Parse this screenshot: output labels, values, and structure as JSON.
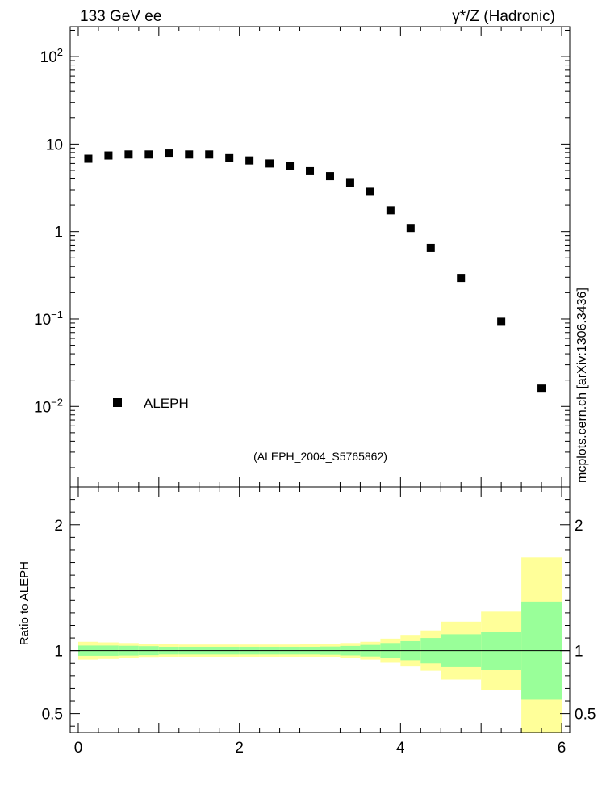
{
  "header": {
    "left_label": "133 GeV ee",
    "right_label": "γ*/Z (Hadronic)"
  },
  "side_label": "mcplots.cern.ch [arXiv:1306.3436]",
  "analysis_label": "(ALEPH_2004_S5765862)",
  "colors": {
    "marker": "#000000",
    "band_inner": "#99ff99",
    "band_outer": "#ffff99",
    "analysis_label": "#8c8c8c"
  },
  "chart_data": [
    {
      "type": "scatter",
      "yscale": "log",
      "xlim": [
        -0.1,
        6.1
      ],
      "ylim": [
        0.0012,
        220
      ],
      "ytick_labels": [
        {
          "value": 0.01,
          "base": "10",
          "exp": "−2"
        },
        {
          "value": 0.1,
          "base": "10",
          "exp": "−1"
        },
        {
          "value": 1,
          "text": "1"
        },
        {
          "value": 10,
          "text": "10"
        },
        {
          "value": 100,
          "base": "10",
          "exp": "2"
        }
      ],
      "legend": {
        "position": "lower-left",
        "entries": [
          "ALEPH"
        ]
      },
      "series": [
        {
          "name": "ALEPH",
          "x": [
            0.125,
            0.375,
            0.625,
            0.875,
            1.125,
            1.375,
            1.625,
            1.875,
            2.125,
            2.375,
            2.625,
            2.875,
            3.125,
            3.375,
            3.625,
            3.875,
            4.125,
            4.375,
            4.75,
            5.25,
            5.75
          ],
          "y": [
            6.8,
            7.4,
            7.6,
            7.6,
            7.8,
            7.6,
            7.6,
            6.9,
            6.5,
            6.0,
            5.6,
            4.9,
            4.3,
            3.6,
            2.85,
            1.75,
            1.1,
            0.65,
            0.295,
            0.093,
            0.016
          ]
        }
      ]
    },
    {
      "type": "area",
      "ylabel": "Ratio to ALEPH",
      "xlim": [
        -0.1,
        6.1
      ],
      "ylim": [
        0.35,
        2.3
      ],
      "xticks": [
        0,
        2,
        4,
        6
      ],
      "yticks": [
        0.5,
        1,
        2
      ],
      "reference_line": 1,
      "bins": [
        {
          "lo": 0.0,
          "hi": 0.25,
          "inner": [
            0.96,
            1.04
          ],
          "outer": [
            0.93,
            1.07
          ]
        },
        {
          "lo": 0.25,
          "hi": 0.5,
          "inner": [
            0.96,
            1.04
          ],
          "outer": [
            0.935,
            1.065
          ]
        },
        {
          "lo": 0.5,
          "hi": 0.75,
          "inner": [
            0.962,
            1.038
          ],
          "outer": [
            0.94,
            1.06
          ]
        },
        {
          "lo": 0.75,
          "hi": 1.0,
          "inner": [
            0.965,
            1.035
          ],
          "outer": [
            0.945,
            1.055
          ]
        },
        {
          "lo": 1.0,
          "hi": 1.25,
          "inner": [
            0.97,
            1.03
          ],
          "outer": [
            0.95,
            1.05
          ]
        },
        {
          "lo": 1.25,
          "hi": 1.5,
          "inner": [
            0.97,
            1.03
          ],
          "outer": [
            0.952,
            1.048
          ]
        },
        {
          "lo": 1.5,
          "hi": 1.75,
          "inner": [
            0.97,
            1.03
          ],
          "outer": [
            0.952,
            1.048
          ]
        },
        {
          "lo": 1.75,
          "hi": 2.0,
          "inner": [
            0.97,
            1.03
          ],
          "outer": [
            0.952,
            1.048
          ]
        },
        {
          "lo": 2.0,
          "hi": 2.25,
          "inner": [
            0.97,
            1.03
          ],
          "outer": [
            0.952,
            1.048
          ]
        },
        {
          "lo": 2.25,
          "hi": 2.5,
          "inner": [
            0.97,
            1.03
          ],
          "outer": [
            0.952,
            1.048
          ]
        },
        {
          "lo": 2.5,
          "hi": 2.75,
          "inner": [
            0.97,
            1.03
          ],
          "outer": [
            0.952,
            1.048
          ]
        },
        {
          "lo": 2.75,
          "hi": 3.0,
          "inner": [
            0.97,
            1.03
          ],
          "outer": [
            0.95,
            1.05
          ]
        },
        {
          "lo": 3.0,
          "hi": 3.25,
          "inner": [
            0.968,
            1.032
          ],
          "outer": [
            0.947,
            1.053
          ]
        },
        {
          "lo": 3.25,
          "hi": 3.5,
          "inner": [
            0.963,
            1.037
          ],
          "outer": [
            0.94,
            1.06
          ]
        },
        {
          "lo": 3.5,
          "hi": 3.75,
          "inner": [
            0.955,
            1.045
          ],
          "outer": [
            0.93,
            1.07
          ]
        },
        {
          "lo": 3.75,
          "hi": 4.0,
          "inner": [
            0.94,
            1.06
          ],
          "outer": [
            0.905,
            1.095
          ]
        },
        {
          "lo": 4.0,
          "hi": 4.25,
          "inner": [
            0.925,
            1.075
          ],
          "outer": [
            0.875,
            1.125
          ]
        },
        {
          "lo": 4.25,
          "hi": 4.5,
          "inner": [
            0.9,
            1.1
          ],
          "outer": [
            0.84,
            1.16
          ]
        },
        {
          "lo": 4.5,
          "hi": 5.0,
          "inner": [
            0.87,
            1.13
          ],
          "outer": [
            0.77,
            1.23
          ]
        },
        {
          "lo": 5.0,
          "hi": 5.5,
          "inner": [
            0.85,
            1.15
          ],
          "outer": [
            0.69,
            1.31
          ]
        },
        {
          "lo": 5.5,
          "hi": 6.0,
          "inner": [
            0.61,
            1.39
          ],
          "outer": [
            0.35,
            1.74
          ]
        }
      ]
    }
  ]
}
